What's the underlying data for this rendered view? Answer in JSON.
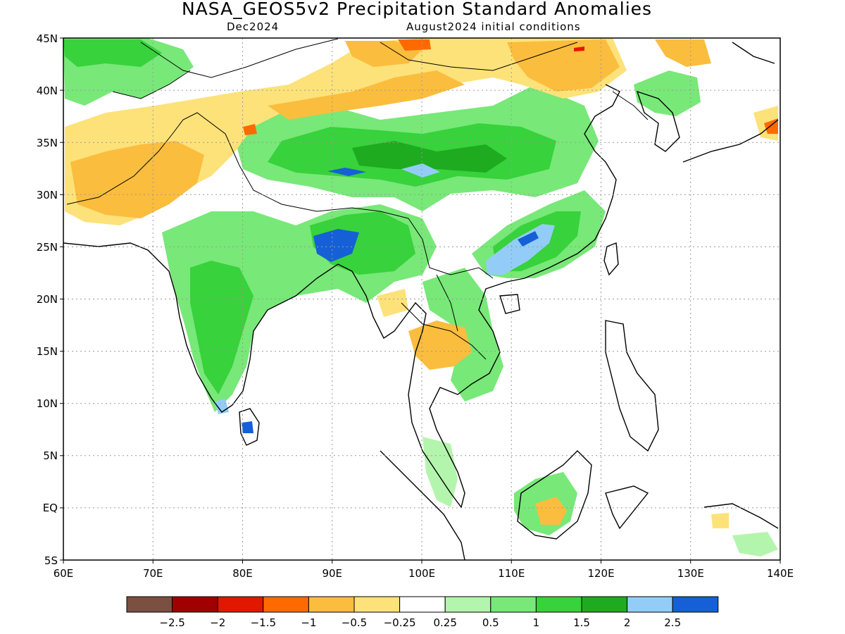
{
  "figure": {
    "title": "NASA_GEOS5v2 Precipitation Standard Anomalies",
    "valid_month": "Dec2024",
    "initial_conditions": "August2024 initial conditions"
  },
  "map": {
    "lon_ticks": [
      "60E",
      "70E",
      "80E",
      "90E",
      "100E",
      "110E",
      "120E",
      "130E",
      "140E"
    ],
    "lat_ticks": [
      "45N",
      "40N",
      "35N",
      "30N",
      "25N",
      "20N",
      "15N",
      "10N",
      "5N",
      "EQ",
      "5S"
    ],
    "grid": true
  },
  "colorbar": {
    "labels": [
      "−2.5",
      "−2",
      "−1.5",
      "−1",
      "−0.5",
      "−0.25",
      "0.25",
      "0.5",
      "1",
      "1.5",
      "2",
      "2.5"
    ],
    "colors": [
      "#7b5041",
      "#a00000",
      "#e01800",
      "#ff6a00",
      "#fbbd3d",
      "#fde27a",
      "#ffffff",
      "#b4f5ad",
      "#78e878",
      "#37d23c",
      "#1fab1f",
      "#93cdf7",
      "#1560d6"
    ]
  }
}
